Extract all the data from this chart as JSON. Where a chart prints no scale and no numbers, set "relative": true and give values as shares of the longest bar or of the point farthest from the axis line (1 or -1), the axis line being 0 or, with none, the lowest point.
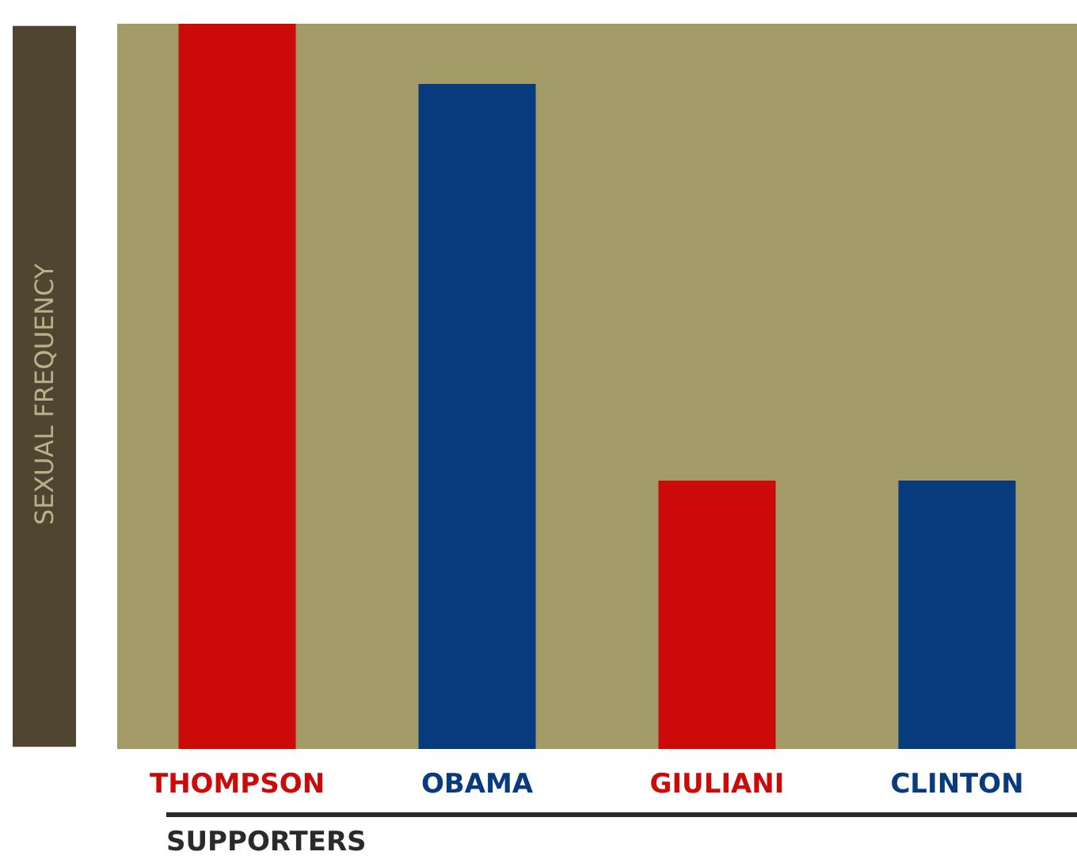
{
  "chart_data": {
    "type": "bar",
    "relative": true,
    "ylabel": "SEXUAL FREQUENCY",
    "xlabel": "SUPPORTERS",
    "categories": [
      "THOMPSON",
      "OBAMA",
      "GIULIANI",
      "CLINTON"
    ],
    "values": [
      1,
      0.917,
      0.37,
      0.37
    ],
    "colors": [
      "#cc0a0a",
      "#073b7e",
      "#cc0a0a",
      "#073b7e"
    ]
  }
}
